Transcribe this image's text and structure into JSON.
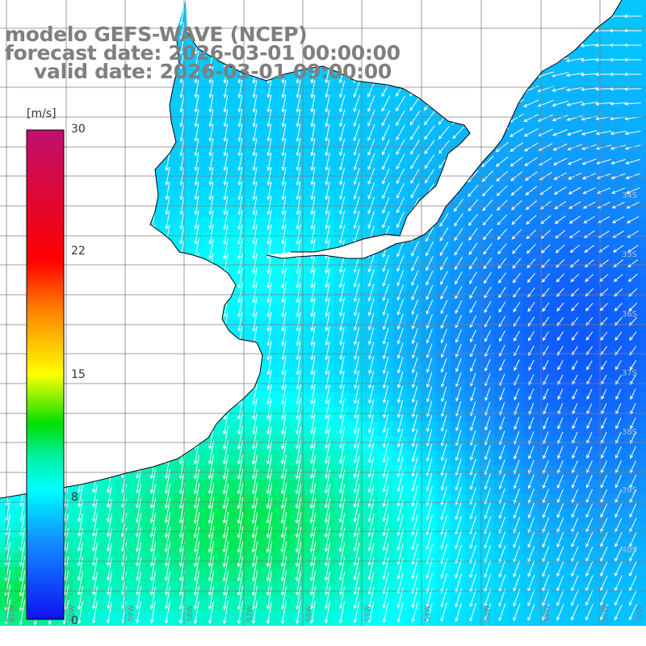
{
  "title": {
    "line1": "modelo GEFS-WAVE (NCEP)",
    "line2": "forecast date: 2026-03-01 00:00:00",
    "line3": "valid date: 2026-03-01 09:00:00"
  },
  "colorbar": {
    "unit": "[m/s]",
    "max_label": "30",
    "tick_22": "22",
    "tick_15": "15",
    "tick_8": "8",
    "min_label": "0",
    "range": [
      0,
      30
    ],
    "colors": [
      "#1010f0",
      "#10a0ff",
      "#00ffff",
      "#00e000",
      "#ffff00",
      "#ff8000",
      "#ff0000",
      "#c01070"
    ]
  },
  "lat_labels": [
    "34S",
    "35S",
    "36S",
    "37S",
    "38S",
    "39S",
    "40S"
  ],
  "lon_labels": [
    "61W",
    "60W",
    "59W",
    "58W",
    "57W",
    "56W",
    "55W",
    "54W",
    "53W",
    "52W",
    "51W",
    "50W"
  ],
  "colors": {
    "land": "#ffffff",
    "coast": "#000000",
    "grid": "#7f7f7f",
    "title": "#7f7f7f",
    "arrow": "#ffffff"
  }
}
